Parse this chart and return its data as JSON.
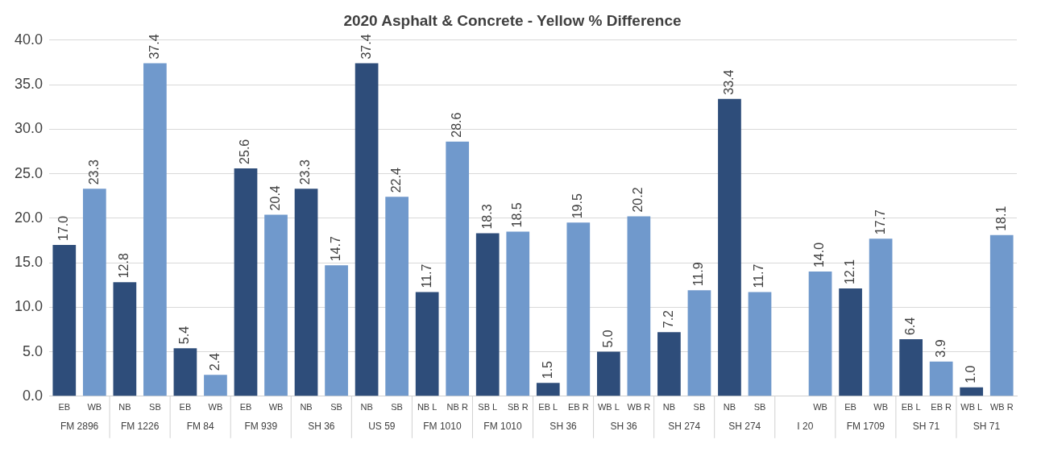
{
  "chart_data": {
    "type": "bar",
    "title": "2020 Asphalt & Concrete - Yellow % Difference",
    "categories": [
      "EB",
      "WB",
      "NB",
      "SB",
      "EB",
      "WB",
      "EB",
      "WB",
      "NB",
      "SB",
      "NB",
      "SB",
      "NB L",
      "NB R",
      "SB L",
      "SB R",
      "EB L",
      "EB R",
      "WB L",
      "WB R",
      "NB",
      "SB",
      "NB",
      "SB",
      null,
      "WB",
      "EB",
      "WB",
      "EB L",
      "EB R",
      "WB L",
      "WB R"
    ],
    "values": [
      17.0,
      23.3,
      12.8,
      37.4,
      5.4,
      2.4,
      25.6,
      20.4,
      23.3,
      14.7,
      37.4,
      22.4,
      11.7,
      28.6,
      18.3,
      18.5,
      1.5,
      19.5,
      5.0,
      20.2,
      7.2,
      11.9,
      33.4,
      11.7,
      null,
      14.0,
      12.1,
      17.7,
      6.4,
      3.9,
      1.0,
      18.1
    ],
    "value_labels": [
      "17.0",
      "23.3",
      "12.8",
      "37.4",
      "5.4",
      "2.4",
      "25.6",
      "20.4",
      "23.3",
      "14.7",
      "37.4",
      "22.4",
      "11.7",
      "28.6",
      "18.3",
      "18.5",
      "1.5",
      "19.5",
      "5.0",
      "20.2",
      "7.2",
      "11.9",
      "33.4",
      "11.7",
      null,
      "14.0",
      "12.1",
      "17.7",
      "6.4",
      "3.9",
      "1.0",
      "18.1"
    ],
    "colors": [
      "#2e4d7a",
      "#7099cc",
      "#2e4d7a",
      "#7099cc",
      "#2e4d7a",
      "#7099cc",
      "#2e4d7a",
      "#7099cc",
      "#2e4d7a",
      "#7099cc",
      "#2e4d7a",
      "#7099cc",
      "#2e4d7a",
      "#7099cc",
      "#2e4d7a",
      "#7099cc",
      "#2e4d7a",
      "#7099cc",
      "#2e4d7a",
      "#7099cc",
      "#2e4d7a",
      "#7099cc",
      "#2e4d7a",
      "#7099cc",
      "#2e4d7a",
      "#7099cc",
      "#2e4d7a",
      "#7099cc",
      "#2e4d7a",
      "#7099cc",
      "#2e4d7a",
      "#7099cc"
    ],
    "annotations": [
      "FM 2896",
      "FM 1226",
      "FM 84",
      "FM 939",
      "SH 36",
      "US 59",
      "FM 1010",
      "FM 1010",
      "SH 36",
      "SH 36",
      "SH 274",
      "SH 274",
      "I 20",
      "FM 1709",
      "SH 71",
      "SH 71"
    ],
    "ylim": [
      0,
      40
    ],
    "yticks": [
      {
        "value": 0,
        "label": "0.0"
      },
      {
        "value": 5,
        "label": "5.0"
      },
      {
        "value": 10,
        "label": "10.0"
      },
      {
        "value": 15,
        "label": "15.0"
      },
      {
        "value": 20,
        "label": "20.0"
      },
      {
        "value": 25,
        "label": "25.0"
      },
      {
        "value": 30,
        "label": "30.0"
      },
      {
        "value": 35,
        "label": "35.0"
      },
      {
        "value": 40,
        "label": "40.0"
      }
    ],
    "grid": "y",
    "legend": false
  }
}
